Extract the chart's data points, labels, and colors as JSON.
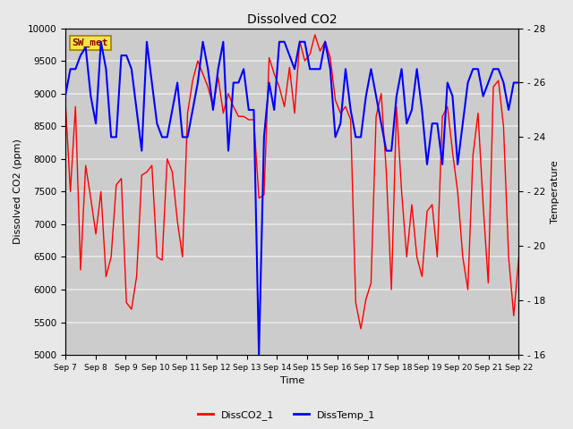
{
  "title": "Dissolved CO2",
  "xlabel": "Time",
  "ylabel_left": "Dissolved CO2 (ppm)",
  "ylabel_right": "Temperature",
  "legend_label": "SW_met",
  "series_labels": [
    "DissCO2_1",
    "DissTemp_1"
  ],
  "series_colors": [
    "red",
    "blue"
  ],
  "ylim_left": [
    5000,
    10000
  ],
  "ylim_right": [
    16,
    28
  ],
  "bg_color": "#e8e8e8",
  "plot_bg_color": "#cccccc",
  "grid_color": "#e8e8e8",
  "tick_labels": [
    "Sep 7",
    "Sep 8",
    "Sep 9",
    "Sep 10",
    "Sep 11",
    "Sep 12",
    "Sep 13",
    "Sep 14",
    "Sep 15",
    "Sep 16",
    "Sep 17",
    "Sep 18",
    "Sep 19",
    "Sep 20",
    "Sep 21",
    "Sep 22"
  ],
  "co2_data": [
    8900,
    7500,
    8800,
    6300,
    7900,
    7400,
    6850,
    7500,
    6200,
    6500,
    7600,
    7700,
    5800,
    5700,
    6200,
    7750,
    7800,
    7900,
    6500,
    6450,
    8000,
    7800,
    7050,
    6500,
    8700,
    9200,
    9500,
    9300,
    9100,
    8800,
    9250,
    8700,
    9000,
    8800,
    8650,
    8650,
    8600,
    8600,
    7400,
    7450,
    9550,
    9300,
    9100,
    8800,
    9400,
    8700,
    9800,
    9500,
    9600,
    9900,
    9650,
    9800,
    9550,
    8900,
    8700,
    8800,
    8600,
    5800,
    5400,
    5850,
    6100,
    8650,
    9000,
    7800,
    6000,
    8800,
    7500,
    6500,
    7300,
    6500,
    6200,
    7200,
    7300,
    6500,
    8650,
    8800,
    8100,
    7500,
    6500,
    6000,
    8050,
    8700,
    7300,
    6100,
    9100,
    9200,
    8500,
    6500,
    5600,
    6500
  ],
  "temp_data": [
    25.5,
    26.5,
    26.5,
    27.0,
    27.3,
    25.5,
    24.5,
    27.5,
    26.5,
    24.0,
    24.0,
    27.0,
    27.0,
    26.5,
    25.0,
    23.5,
    27.5,
    26.0,
    24.5,
    24.0,
    24.0,
    25.0,
    26.0,
    24.0,
    24.0,
    25.0,
    26.0,
    27.5,
    26.5,
    25.0,
    26.5,
    27.5,
    23.5,
    26.0,
    26.0,
    26.5,
    25.0,
    25.0,
    16.0,
    24.0,
    26.0,
    25.0,
    27.5,
    27.5,
    27.0,
    26.5,
    27.5,
    27.5,
    26.5,
    26.5,
    26.5,
    27.5,
    26.5,
    24.0,
    24.5,
    26.5,
    25.0,
    24.0,
    24.0,
    25.5,
    26.5,
    25.5,
    24.5,
    23.5,
    23.5,
    25.5,
    26.5,
    24.5,
    25.0,
    26.5,
    25.0,
    23.0,
    24.5,
    24.5,
    23.0,
    26.0,
    25.5,
    23.0,
    24.5,
    26.0,
    26.5,
    26.5,
    25.5,
    26.0,
    26.5,
    26.5,
    26.0,
    25.0,
    26.0,
    26.0
  ]
}
